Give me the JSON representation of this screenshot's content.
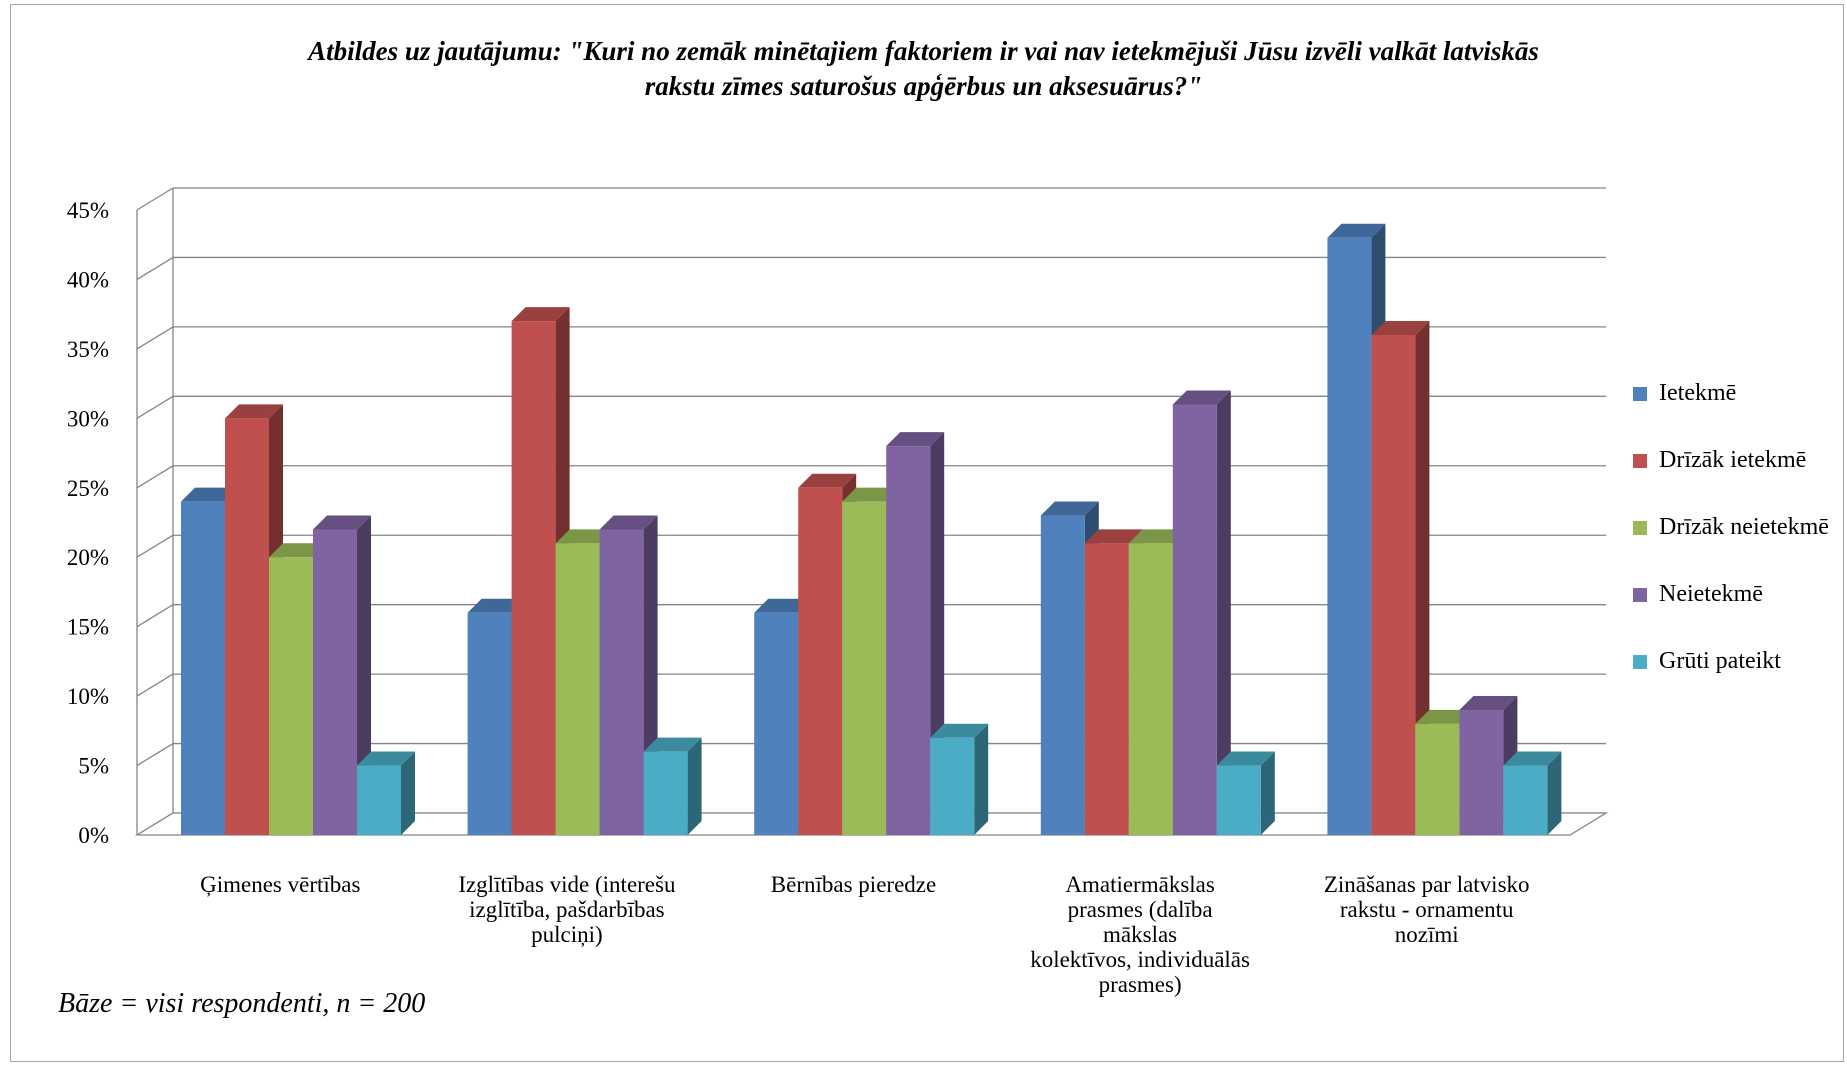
{
  "chart_data": {
    "type": "bar",
    "title_lines": [
      "Atbildes uz jautājumu: \"Kuri no zemāk minētajiem faktoriem ir vai nav ietekmējuši Jūsu izvēli valkāt latviskās",
      "rakstu zīmes saturošus apģērbus un aksesuārus?\""
    ],
    "note": "Bāze = visi respondenti, n = 200",
    "categories": [
      [
        "Ģimenes vērtības"
      ],
      [
        "Izglītības vide (interešu",
        "izglītība, pašdarbības",
        "pulciņi)"
      ],
      [
        "Bērnības pieredze"
      ],
      [
        "Amatiermākslas",
        "prasmes (dalība",
        "mākslas",
        "kolektīvos, individuālās",
        "prasmes)"
      ],
      [
        "Zināšanas par latvisko",
        "rakstu - ornamentu",
        "nozīmi"
      ]
    ],
    "series": [
      {
        "name": "Ietekmē",
        "color": "#4f81bd",
        "values": [
          24,
          16,
          16,
          23,
          43
        ]
      },
      {
        "name": "Drīzāk ietekmē",
        "color": "#c0504d",
        "values": [
          30,
          37,
          25,
          21,
          36
        ]
      },
      {
        "name": "Drīzāk neietekmē",
        "color": "#9bbb59",
        "values": [
          20,
          21,
          24,
          21,
          8
        ]
      },
      {
        "name": "Neietekmē",
        "color": "#8064a2",
        "values": [
          22,
          22,
          28,
          31,
          9
        ]
      },
      {
        "name": "Grūti pateikt",
        "color": "#4bacc6",
        "values": [
          5,
          6,
          7,
          5,
          5
        ]
      }
    ],
    "yticks": [
      "0%",
      "5%",
      "10%",
      "15%",
      "20%",
      "25%",
      "30%",
      "35%",
      "40%",
      "45%"
    ],
    "ylim": [
      0,
      45
    ],
    "grid": true,
    "legend_position": "right",
    "three_d": true
  }
}
